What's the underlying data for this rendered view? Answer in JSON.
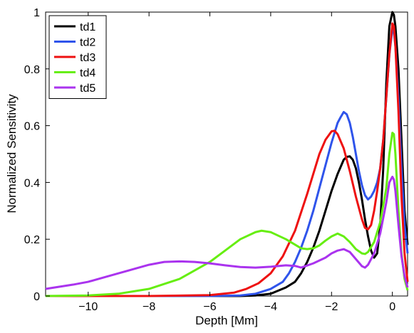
{
  "chart_data": {
    "type": "line",
    "title": "",
    "xlabel": "Depth  [Mm]",
    "ylabel": "Normalized Sensitivity",
    "xlim": [
      -11.4,
      0.5
    ],
    "ylim": [
      0,
      1
    ],
    "xticks": [
      -10,
      -8,
      -6,
      -4,
      -2,
      0
    ],
    "xtick_labels": [
      "−10",
      "−8",
      "−6",
      "−4",
      "−2",
      "0"
    ],
    "yticks": [
      0,
      0.2,
      0.4,
      0.6,
      0.8,
      1
    ],
    "ytick_labels": [
      "0",
      "0.2",
      "0.4",
      "0.6",
      "0.8",
      "1"
    ],
    "grid": false,
    "legend_position": "top-left",
    "series": [
      {
        "name": "td1",
        "color": "#000000",
        "x": [
          -11.4,
          -6,
          -5,
          -4.5,
          -4,
          -3.5,
          -3.2,
          -3.0,
          -2.8,
          -2.6,
          -2.4,
          -2.2,
          -2.0,
          -1.8,
          -1.6,
          -1.5,
          -1.4,
          -1.3,
          -1.2,
          -1.1,
          -1.0,
          -0.9,
          -0.8,
          -0.7,
          -0.6,
          -0.5,
          -0.4,
          -0.3,
          -0.2,
          -0.1,
          0.0,
          0.05,
          0.1,
          0.2,
          0.3,
          0.4,
          0.5
        ],
        "y": [
          0,
          0,
          0,
          0.002,
          0.008,
          0.03,
          0.05,
          0.08,
          0.12,
          0.17,
          0.23,
          0.3,
          0.37,
          0.43,
          0.48,
          0.49,
          0.492,
          0.48,
          0.45,
          0.4,
          0.34,
          0.27,
          0.21,
          0.16,
          0.135,
          0.15,
          0.25,
          0.45,
          0.75,
          0.95,
          1.0,
          0.99,
          0.95,
          0.8,
          0.55,
          0.3,
          0.18
        ]
      },
      {
        "name": "td2",
        "color": "#2f54eb",
        "x": [
          -11.4,
          -6,
          -5,
          -4.5,
          -4,
          -3.6,
          -3.4,
          -3.2,
          -3.0,
          -2.8,
          -2.6,
          -2.4,
          -2.2,
          -2.0,
          -1.8,
          -1.7,
          -1.6,
          -1.5,
          -1.4,
          -1.3,
          -1.2,
          -1.1,
          -1.0,
          -0.9,
          -0.8,
          -0.7,
          -0.6,
          -0.5,
          -0.4,
          -0.3,
          -0.2,
          -0.1,
          0.0,
          0.05,
          0.1,
          0.2,
          0.3,
          0.4,
          0.5
        ],
        "y": [
          0,
          0,
          0.002,
          0.008,
          0.025,
          0.05,
          0.08,
          0.12,
          0.17,
          0.23,
          0.3,
          0.38,
          0.46,
          0.54,
          0.61,
          0.63,
          0.648,
          0.64,
          0.61,
          0.56,
          0.5,
          0.44,
          0.39,
          0.355,
          0.34,
          0.35,
          0.37,
          0.4,
          0.45,
          0.55,
          0.7,
          0.85,
          0.94,
          0.93,
          0.88,
          0.7,
          0.45,
          0.25,
          0.15
        ]
      },
      {
        "name": "td3",
        "color": "#ee1111",
        "x": [
          -11.4,
          -8,
          -6,
          -5.2,
          -4.8,
          -4.4,
          -4.0,
          -3.6,
          -3.2,
          -2.8,
          -2.6,
          -2.4,
          -2.2,
          -2.0,
          -1.9,
          -1.8,
          -1.6,
          -1.4,
          -1.2,
          -1.0,
          -0.9,
          -0.8,
          -0.7,
          -0.6,
          -0.5,
          -0.4,
          -0.3,
          -0.2,
          -0.1,
          0.0,
          0.05,
          0.1,
          0.2,
          0.3,
          0.4,
          0.5
        ],
        "y": [
          0,
          0,
          0.003,
          0.012,
          0.025,
          0.045,
          0.08,
          0.14,
          0.23,
          0.36,
          0.43,
          0.5,
          0.55,
          0.58,
          0.582,
          0.57,
          0.52,
          0.44,
          0.35,
          0.27,
          0.24,
          0.235,
          0.25,
          0.3,
          0.37,
          0.45,
          0.55,
          0.7,
          0.85,
          0.96,
          0.95,
          0.88,
          0.65,
          0.35,
          0.15,
          0.05
        ]
      },
      {
        "name": "td4",
        "color": "#66ee11",
        "x": [
          -11.4,
          -10,
          -9,
          -8,
          -7,
          -6,
          -5.5,
          -5,
          -4.5,
          -4.3,
          -4,
          -3.5,
          -3,
          -2.8,
          -2.6,
          -2.4,
          -2.2,
          -2.0,
          -1.8,
          -1.6,
          -1.4,
          -1.2,
          -1.0,
          -0.9,
          -0.8,
          -0.6,
          -0.4,
          -0.2,
          -0.1,
          0.0,
          0.05,
          0.1,
          0.2,
          0.3,
          0.4,
          0.5
        ],
        "y": [
          0,
          0.002,
          0.008,
          0.025,
          0.06,
          0.12,
          0.16,
          0.2,
          0.225,
          0.23,
          0.225,
          0.2,
          0.168,
          0.165,
          0.168,
          0.178,
          0.195,
          0.21,
          0.22,
          0.21,
          0.19,
          0.165,
          0.15,
          0.148,
          0.155,
          0.19,
          0.26,
          0.38,
          0.5,
          0.575,
          0.57,
          0.5,
          0.3,
          0.15,
          0.06,
          0.02
        ]
      },
      {
        "name": "td5",
        "color": "#aa33ee",
        "x": [
          -11.4,
          -10.5,
          -10,
          -9.5,
          -9,
          -8.5,
          -8,
          -7.5,
          -7,
          -6.5,
          -6,
          -5.5,
          -5,
          -4.5,
          -4,
          -3.5,
          -3.2,
          -3.0,
          -2.6,
          -2.2,
          -2.0,
          -1.8,
          -1.6,
          -1.4,
          -1.2,
          -1.0,
          -0.9,
          -0.8,
          -0.6,
          -0.4,
          -0.2,
          -0.1,
          0.0,
          0.05,
          0.1,
          0.2,
          0.3,
          0.4,
          0.5
        ],
        "y": [
          0.025,
          0.04,
          0.05,
          0.065,
          0.08,
          0.095,
          0.11,
          0.12,
          0.122,
          0.12,
          0.115,
          0.108,
          0.102,
          0.1,
          0.103,
          0.108,
          0.106,
          0.1,
          0.115,
          0.135,
          0.15,
          0.16,
          0.165,
          0.155,
          0.13,
          0.105,
          0.1,
          0.11,
          0.15,
          0.22,
          0.33,
          0.4,
          0.42,
          0.41,
          0.37,
          0.25,
          0.14,
          0.07,
          0.03
        ]
      }
    ]
  }
}
